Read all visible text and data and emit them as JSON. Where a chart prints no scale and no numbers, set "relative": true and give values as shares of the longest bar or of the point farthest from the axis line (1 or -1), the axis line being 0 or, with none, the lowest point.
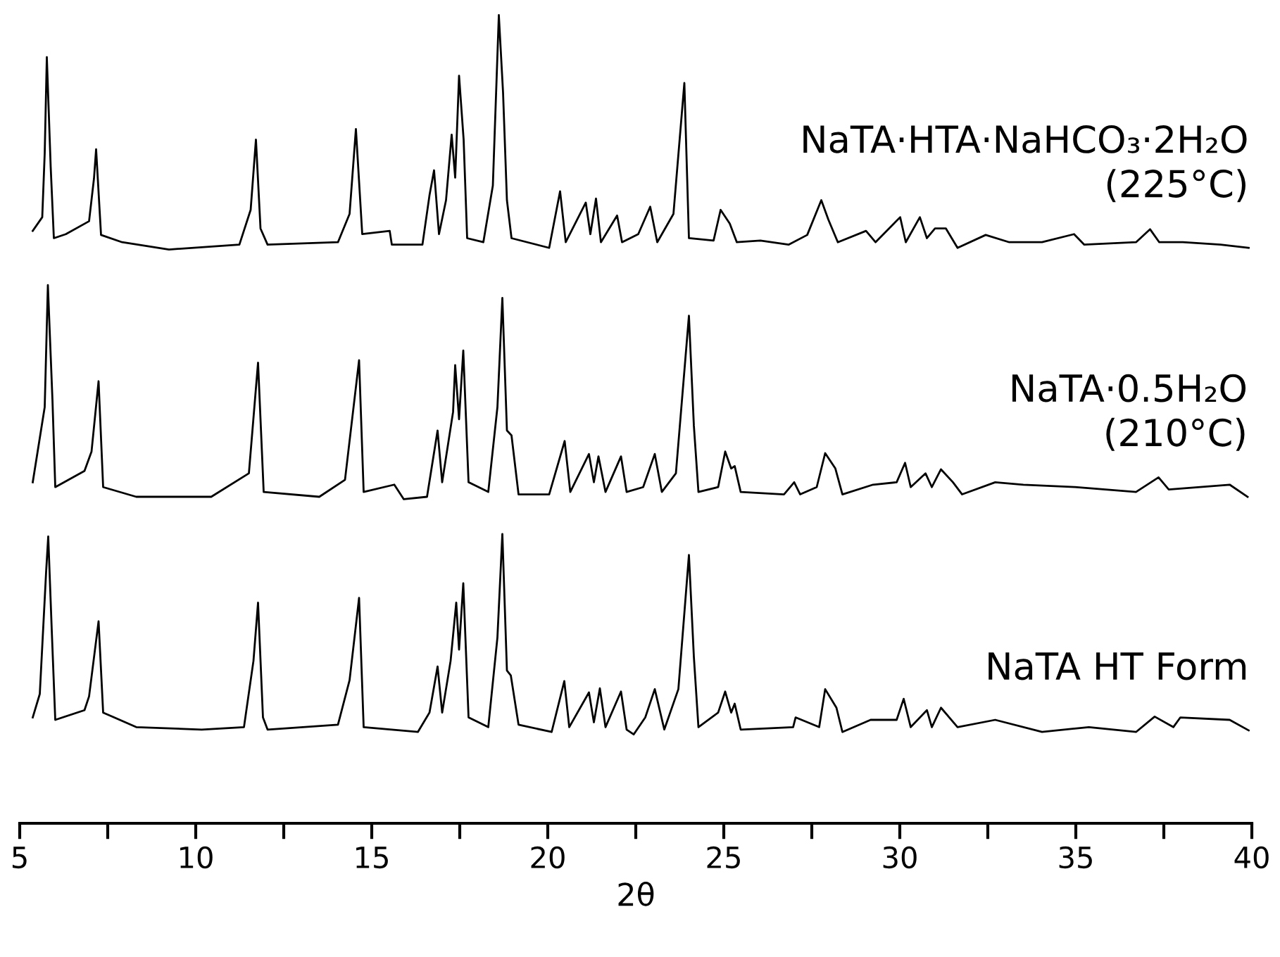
{
  "chart_data": {
    "type": "line",
    "relative": true,
    "xlabel": "2θ",
    "xlim": [
      5,
      40
    ],
    "xticks": [
      5,
      {
        "value": 7.5,
        "label": null
      },
      10,
      {
        "value": 12.5,
        "label": null
      },
      15,
      {
        "value": 17.5,
        "label": null
      },
      20,
      {
        "value": 22.5,
        "label": null
      },
      25,
      {
        "value": 27.5,
        "label": null
      },
      30,
      {
        "value": 32.5,
        "label": null
      },
      35,
      {
        "value": 37.5,
        "label": null
      },
      40
    ],
    "grid": false,
    "legend": false,
    "marker": "none",
    "line_style": "solid",
    "series": [
      {
        "name": "NaTA·HTA·NaHCO₃·2H₂O\n(225°C)",
        "color": "#000000",
        "x": [
          5.37,
          5.64,
          5.71,
          5.77,
          5.88,
          5.97,
          6.31,
          6.97,
          7.11,
          7.17,
          7.31,
          7.91,
          9.24,
          11.24,
          11.56,
          11.71,
          11.84,
          12.04,
          14.04,
          14.37,
          14.55,
          14.73,
          15.51,
          15.57,
          16.44,
          16.64,
          16.77,
          16.91,
          17.11,
          17.27,
          17.37,
          17.48,
          17.61,
          17.71,
          18.17,
          18.44,
          18.61,
          18.73,
          18.84,
          18.97,
          20.04,
          20.35,
          20.51,
          21.08,
          21.21,
          21.37,
          21.51,
          21.97,
          22.11,
          22.57,
          22.91,
          23.11,
          23.57,
          23.88,
          24.01,
          24.71,
          24.91,
          25.17,
          25.37,
          26.04,
          26.84,
          27.37,
          27.77,
          27.97,
          28.24,
          29.04,
          29.31,
          30.01,
          30.17,
          30.57,
          30.77,
          31.0,
          31.31,
          31.64,
          32.44,
          33.11,
          34.04,
          34.95,
          35.24,
          36.71,
          37.11,
          37.37,
          38.04,
          39.11,
          39.91
        ],
        "values": [
          0.733,
          0.75,
          0.829,
          0.948,
          0.812,
          0.724,
          0.729,
          0.745,
          0.798,
          0.834,
          0.728,
          0.719,
          0.71,
          0.716,
          0.759,
          0.846,
          0.736,
          0.716,
          0.719,
          0.754,
          0.859,
          0.729,
          0.733,
          0.716,
          0.716,
          0.777,
          0.808,
          0.729,
          0.771,
          0.852,
          0.799,
          0.925,
          0.846,
          0.724,
          0.719,
          0.789,
          1.0,
          0.904,
          0.771,
          0.724,
          0.712,
          0.782,
          0.719,
          0.768,
          0.729,
          0.773,
          0.719,
          0.752,
          0.719,
          0.729,
          0.763,
          0.719,
          0.754,
          0.916,
          0.724,
          0.721,
          0.759,
          0.742,
          0.719,
          0.721,
          0.716,
          0.728,
          0.771,
          0.747,
          0.719,
          0.733,
          0.719,
          0.75,
          0.719,
          0.75,
          0.724,
          0.736,
          0.736,
          0.712,
          0.728,
          0.719,
          0.719,
          0.729,
          0.716,
          0.719,
          0.735,
          0.719,
          0.719,
          0.716,
          0.712
        ]
      },
      {
        "name": "NaTA·0.5H₂O\n(210°C)",
        "color": "#000000",
        "x": [
          5.37,
          5.71,
          5.8,
          5.93,
          6.01,
          6.84,
          7.04,
          7.24,
          7.37,
          8.31,
          10.44,
          11.51,
          11.77,
          11.93,
          13.51,
          14.24,
          14.64,
          14.77,
          15.64,
          15.91,
          16.57,
          16.87,
          17.0,
          17.31,
          17.37,
          17.48,
          17.6,
          17.75,
          18.31,
          18.57,
          18.71,
          18.84,
          18.97,
          19.17,
          20.04,
          20.48,
          20.64,
          21.17,
          21.31,
          21.44,
          21.64,
          22.08,
          22.24,
          22.71,
          23.04,
          23.24,
          23.64,
          24.01,
          24.15,
          24.28,
          24.84,
          25.04,
          25.21,
          25.31,
          25.48,
          26.71,
          27.0,
          27.17,
          27.64,
          27.88,
          28.17,
          28.37,
          29.24,
          29.91,
          30.15,
          30.31,
          30.73,
          30.91,
          31.17,
          31.51,
          31.77,
          32.71,
          33.51,
          34.97,
          36.71,
          37.35,
          37.64,
          39.37,
          39.88
        ],
        "values": [
          0.422,
          0.515,
          0.666,
          0.524,
          0.416,
          0.436,
          0.46,
          0.547,
          0.416,
          0.404,
          0.404,
          0.433,
          0.57,
          0.41,
          0.404,
          0.425,
          0.573,
          0.41,
          0.419,
          0.401,
          0.404,
          0.486,
          0.422,
          0.509,
          0.567,
          0.5,
          0.585,
          0.422,
          0.41,
          0.515,
          0.65,
          0.486,
          0.48,
          0.407,
          0.407,
          0.473,
          0.41,
          0.457,
          0.422,
          0.454,
          0.41,
          0.454,
          0.41,
          0.416,
          0.457,
          0.41,
          0.433,
          0.628,
          0.492,
          0.41,
          0.416,
          0.46,
          0.439,
          0.442,
          0.41,
          0.407,
          0.422,
          0.407,
          0.416,
          0.458,
          0.439,
          0.407,
          0.419,
          0.422,
          0.446,
          0.416,
          0.433,
          0.416,
          0.438,
          0.422,
          0.407,
          0.422,
          0.419,
          0.416,
          0.41,
          0.428,
          0.413,
          0.419,
          0.404
        ]
      },
      {
        "name": "NaTA HT Form",
        "color": "#000000",
        "x": [
          5.37,
          5.57,
          5.75,
          5.81,
          5.91,
          6.01,
          6.84,
          6.97,
          7.24,
          7.37,
          8.31,
          10.17,
          11.37,
          11.64,
          11.77,
          11.91,
          12.04,
          14.04,
          14.37,
          14.64,
          14.77,
          16.31,
          16.64,
          16.87,
          17.0,
          17.24,
          17.4,
          17.48,
          17.6,
          17.75,
          18.31,
          18.57,
          18.71,
          18.84,
          18.95,
          19.17,
          20.11,
          20.47,
          20.61,
          21.17,
          21.31,
          21.48,
          21.64,
          22.08,
          22.24,
          22.44,
          22.77,
          23.04,
          23.31,
          23.71,
          24.01,
          24.15,
          24.28,
          24.84,
          25.04,
          25.21,
          25.31,
          25.48,
          26.97,
          27.04,
          27.71,
          27.88,
          28.2,
          28.37,
          29.17,
          29.91,
          30.11,
          30.31,
          30.77,
          30.91,
          31.17,
          31.64,
          32.71,
          34.04,
          35.37,
          36.71,
          37.24,
          37.77,
          37.97,
          39.37,
          39.91
        ],
        "values": [
          0.131,
          0.16,
          0.311,
          0.355,
          0.239,
          0.128,
          0.14,
          0.157,
          0.25,
          0.137,
          0.119,
          0.116,
          0.119,
          0.201,
          0.273,
          0.131,
          0.116,
          0.122,
          0.177,
          0.279,
          0.119,
          0.113,
          0.137,
          0.194,
          0.137,
          0.201,
          0.273,
          0.215,
          0.297,
          0.131,
          0.119,
          0.23,
          0.358,
          0.189,
          0.183,
          0.122,
          0.113,
          0.176,
          0.119,
          0.162,
          0.125,
          0.167,
          0.119,
          0.163,
          0.116,
          0.11,
          0.131,
          0.166,
          0.116,
          0.166,
          0.332,
          0.206,
          0.119,
          0.137,
          0.163,
          0.137,
          0.148,
          0.116,
          0.119,
          0.131,
          0.119,
          0.166,
          0.143,
          0.113,
          0.128,
          0.128,
          0.154,
          0.119,
          0.14,
          0.119,
          0.143,
          0.119,
          0.128,
          0.113,
          0.119,
          0.113,
          0.132,
          0.119,
          0.131,
          0.128,
          0.115
        ]
      }
    ]
  }
}
